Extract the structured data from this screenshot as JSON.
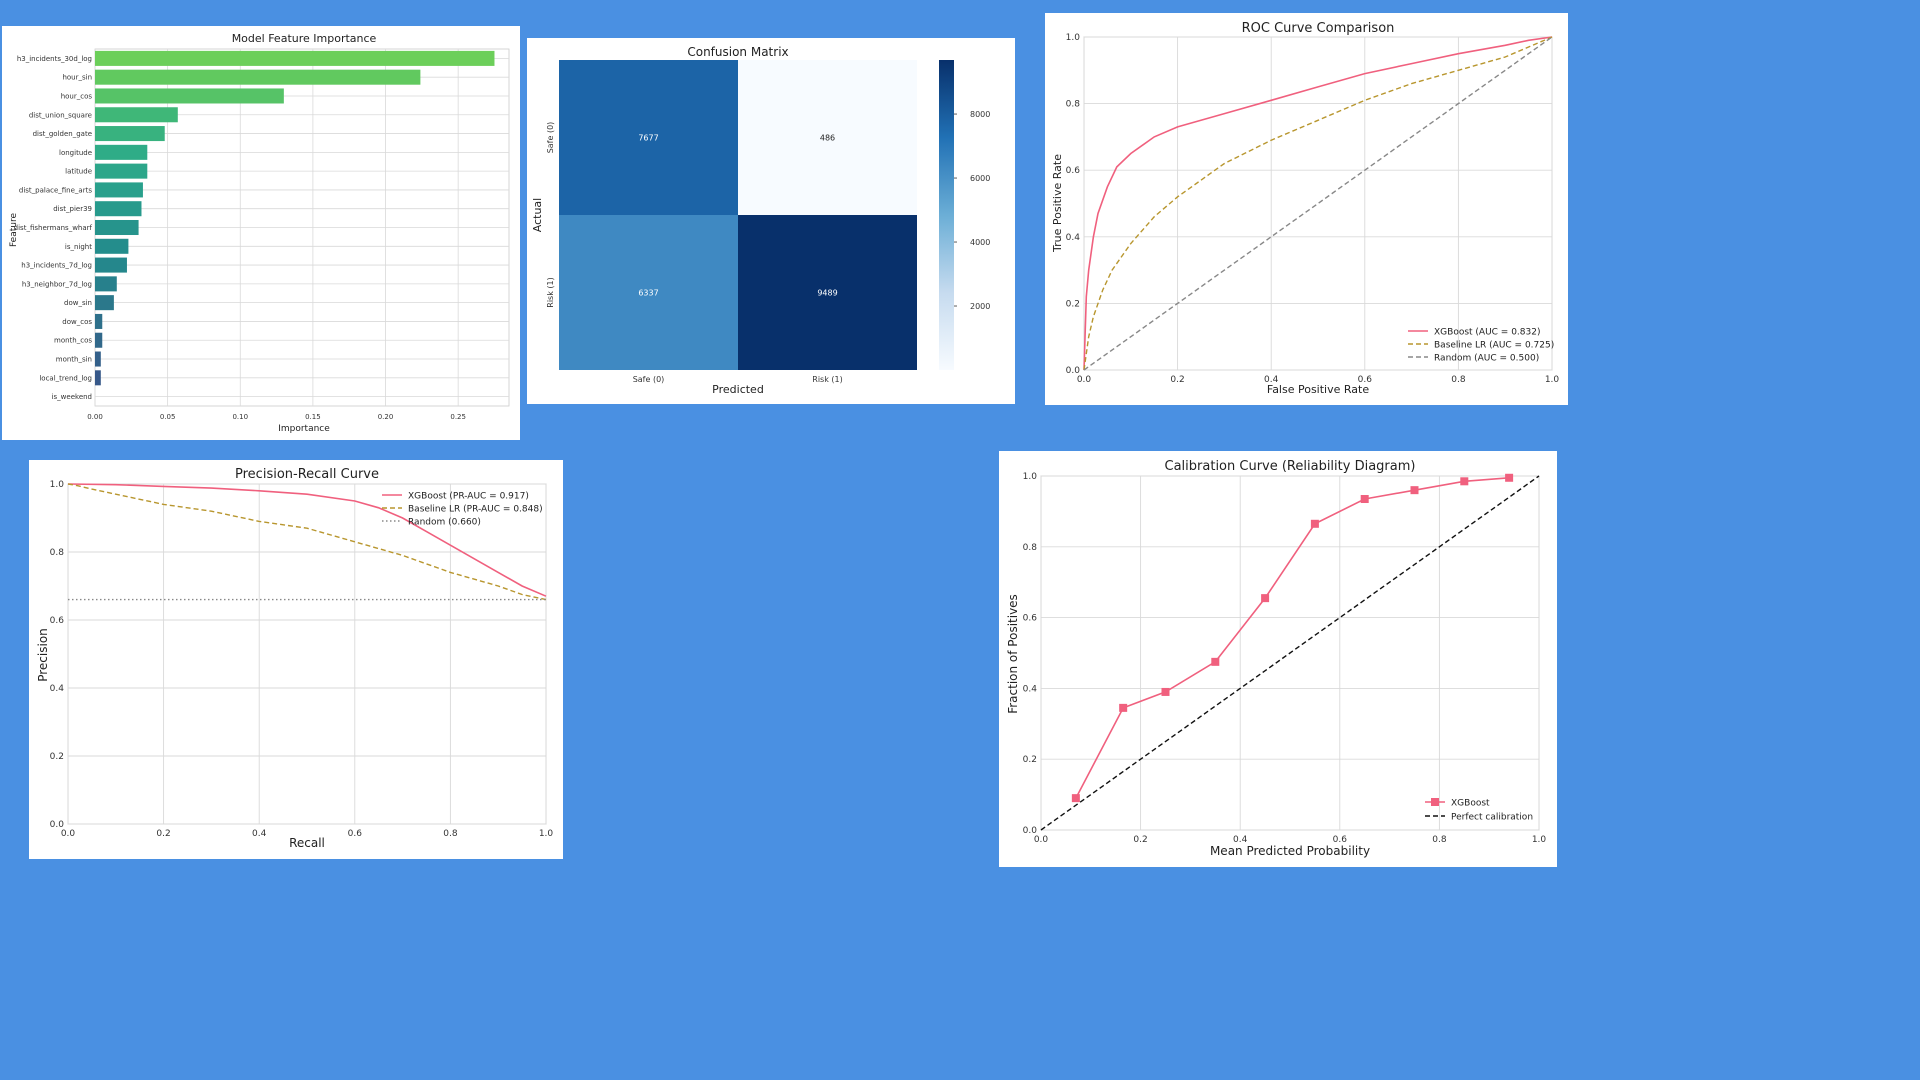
{
  "colors": {
    "background": "#4a90e2",
    "xgboost": "#f0607e",
    "baseline": "#b8962e",
    "random": "#888888",
    "grid": "#d9d9d9",
    "cm_high": "#08306b",
    "cm_low": "#f7fbff"
  },
  "charts": {
    "feature_importance": {
      "chart_data": {
        "type": "bar",
        "orientation": "horizontal",
        "title": "Model Feature Importance",
        "xlabel": "Importance",
        "ylabel": "Feature",
        "xlim": [
          0,
          0.285
        ],
        "xticks": [
          "0.00",
          "0.05",
          "0.10",
          "0.15",
          "0.20",
          "0.25"
        ],
        "categories": [
          "h3_incidents_30d_log",
          "hour_sin",
          "hour_cos",
          "dist_union_square",
          "dist_golden_gate",
          "longitude",
          "latitude",
          "dist_palace_fine_arts",
          "dist_pier39",
          "dist_fishermans_wharf",
          "is_night",
          "h3_incidents_7d_log",
          "h3_neighbor_7d_log",
          "dow_sin",
          "dow_cos",
          "month_cos",
          "month_sin",
          "local_trend_log",
          "is_weekend"
        ],
        "values": [
          0.275,
          0.224,
          0.13,
          0.057,
          0.048,
          0.036,
          0.036,
          0.033,
          0.032,
          0.03,
          0.023,
          0.022,
          0.015,
          0.013,
          0.005,
          0.005,
          0.004,
          0.004,
          0.0
        ],
        "colors": [
          "#6ccf5a",
          "#61c95f",
          "#56c367",
          "#3fb778",
          "#38b27f",
          "#2fac87",
          "#2ca68a",
          "#29a08c",
          "#279a8c",
          "#26948c",
          "#248d8c",
          "#25878c",
          "#27808c",
          "#2b788b",
          "#2e708b",
          "#31688a",
          "#34608a",
          "#375889",
          "#3b4f88"
        ]
      }
    },
    "confusion_matrix": {
      "chart_data": {
        "type": "heatmap",
        "title": "Confusion Matrix",
        "xlabel": "Predicted",
        "ylabel": "Actual",
        "x_labels": [
          "Safe (0)",
          "Risk (1)"
        ],
        "y_labels": [
          "Safe (0)",
          "Risk (1)"
        ],
        "values": [
          [
            7677,
            486
          ],
          [
            6337,
            9489
          ]
        ],
        "colorbar_ticks": [
          "2000",
          "4000",
          "6000",
          "8000"
        ],
        "colorbar_values": [
          2000,
          4000,
          6000,
          8000
        ],
        "vmin": 486,
        "vmax": 9489
      }
    },
    "roc": {
      "chart_data": {
        "type": "line",
        "title": "ROC Curve Comparison",
        "xlabel": "False Positive Rate",
        "ylabel": "True Positive Rate",
        "xlim": [
          0,
          1
        ],
        "ylim": [
          0,
          1
        ],
        "ticks": [
          "0.0",
          "0.2",
          "0.4",
          "0.6",
          "0.8",
          "1.0"
        ],
        "legend_position": "bottom-right",
        "series": [
          {
            "name": "XGBoost (AUC = 0.832)",
            "style": "solid",
            "color": "#f0607e",
            "x": [
              0,
              0.005,
              0.01,
              0.02,
              0.03,
              0.05,
              0.07,
              0.1,
              0.15,
              0.2,
              0.3,
              0.4,
              0.5,
              0.6,
              0.7,
              0.8,
              0.9,
              0.95,
              1.0
            ],
            "y": [
              0,
              0.22,
              0.3,
              0.4,
              0.47,
              0.55,
              0.61,
              0.65,
              0.7,
              0.73,
              0.77,
              0.81,
              0.85,
              0.89,
              0.92,
              0.95,
              0.975,
              0.99,
              1.0
            ]
          },
          {
            "name": "Baseline LR (AUC = 0.725)",
            "style": "dashed",
            "color": "#b8962e",
            "x": [
              0,
              0.01,
              0.02,
              0.04,
              0.06,
              0.1,
              0.15,
              0.2,
              0.3,
              0.4,
              0.5,
              0.6,
              0.7,
              0.8,
              0.9,
              0.95,
              1.0
            ],
            "y": [
              0,
              0.1,
              0.16,
              0.24,
              0.3,
              0.38,
              0.46,
              0.52,
              0.62,
              0.69,
              0.75,
              0.81,
              0.86,
              0.9,
              0.94,
              0.97,
              1.0
            ]
          },
          {
            "name": "Random (AUC = 0.500)",
            "style": "dashed",
            "color": "#888888",
            "x": [
              0,
              1
            ],
            "y": [
              0,
              1
            ]
          }
        ]
      }
    },
    "pr": {
      "chart_data": {
        "type": "line",
        "title": "Precision-Recall Curve",
        "xlabel": "Recall",
        "ylabel": "Precision",
        "xlim": [
          0,
          1
        ],
        "ylim": [
          0,
          1
        ],
        "ticks": [
          "0.0",
          "0.2",
          "0.4",
          "0.6",
          "0.8",
          "1.0"
        ],
        "legend_position": "top-right",
        "series": [
          {
            "name": "XGBoost (PR-AUC = 0.917)",
            "style": "solid",
            "color": "#f0607e",
            "x": [
              0,
              0.1,
              0.2,
              0.3,
              0.4,
              0.5,
              0.6,
              0.65,
              0.7,
              0.75,
              0.8,
              0.85,
              0.9,
              0.95,
              1.0
            ],
            "y": [
              1.0,
              0.998,
              0.993,
              0.988,
              0.98,
              0.97,
              0.95,
              0.93,
              0.9,
              0.86,
              0.82,
              0.78,
              0.74,
              0.7,
              0.67
            ]
          },
          {
            "name": "Baseline LR (PR-AUC = 0.848)",
            "style": "dashed",
            "color": "#b8962e",
            "x": [
              0,
              0.02,
              0.05,
              0.1,
              0.2,
              0.3,
              0.4,
              0.5,
              0.6,
              0.7,
              0.8,
              0.9,
              0.95,
              1.0
            ],
            "y": [
              1.0,
              0.995,
              0.985,
              0.97,
              0.94,
              0.92,
              0.89,
              0.87,
              0.83,
              0.79,
              0.74,
              0.7,
              0.675,
              0.66
            ]
          },
          {
            "name": "Random (0.660)",
            "style": "dotted",
            "color": "#888888",
            "x": [
              0,
              1
            ],
            "y": [
              0.66,
              0.66
            ]
          }
        ]
      }
    },
    "calibration": {
      "chart_data": {
        "type": "line",
        "title": "Calibration Curve (Reliability Diagram)",
        "xlabel": "Mean Predicted Probability",
        "ylabel": "Fraction of Positives",
        "xlim": [
          0,
          1
        ],
        "ylim": [
          0,
          1
        ],
        "ticks": [
          "0.0",
          "0.2",
          "0.4",
          "0.6",
          "0.8",
          "1.0"
        ],
        "legend_position": "bottom-right",
        "series": [
          {
            "name": "XGBoost",
            "style": "solid-markers",
            "color": "#f0607e",
            "x": [
              0.07,
              0.165,
              0.25,
              0.35,
              0.45,
              0.55,
              0.65,
              0.75,
              0.85,
              0.94
            ],
            "y": [
              0.09,
              0.345,
              0.39,
              0.475,
              0.655,
              0.865,
              0.935,
              0.96,
              0.985,
              0.995
            ]
          },
          {
            "name": "Perfect calibration",
            "style": "dashed",
            "color": "#111111",
            "x": [
              0,
              1
            ],
            "y": [
              0,
              1
            ]
          }
        ]
      }
    }
  }
}
